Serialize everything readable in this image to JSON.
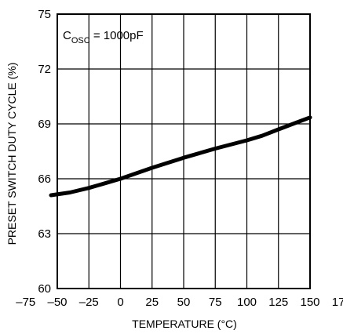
{
  "chart_data": {
    "type": "line",
    "title": "",
    "xlabel": "TEMPERATURE (°C)",
    "ylabel": "PRESET SWITCH DUTY CYCLE (%)",
    "xlim": [
      -75,
      175
    ],
    "ylim": [
      60,
      75
    ],
    "xticks": [
      -75,
      -50,
      -25,
      0,
      25,
      50,
      75,
      100,
      125,
      150,
      175
    ],
    "xtick_labels": [
      "–75",
      "–50",
      "–25",
      "0",
      "25",
      "50",
      "75",
      "100",
      "125",
      "150",
      "175"
    ],
    "yticks": [
      60,
      63,
      66,
      69,
      72,
      75
    ],
    "ytick_labels": [
      "60",
      "63",
      "66",
      "69",
      "72",
      "75"
    ],
    "grid": true,
    "annotation": {
      "main": "C",
      "sub": "OSC",
      "rest": " = 1000pF"
    },
    "series": [
      {
        "name": "",
        "color": "#000000",
        "x": [
          -55,
          -40,
          -25,
          -10,
          0,
          25,
          50,
          75,
          100,
          112,
          125,
          150
        ],
        "y": [
          65.1,
          65.25,
          65.5,
          65.8,
          66.0,
          66.6,
          67.15,
          67.65,
          68.1,
          68.35,
          68.7,
          69.35
        ]
      }
    ]
  }
}
